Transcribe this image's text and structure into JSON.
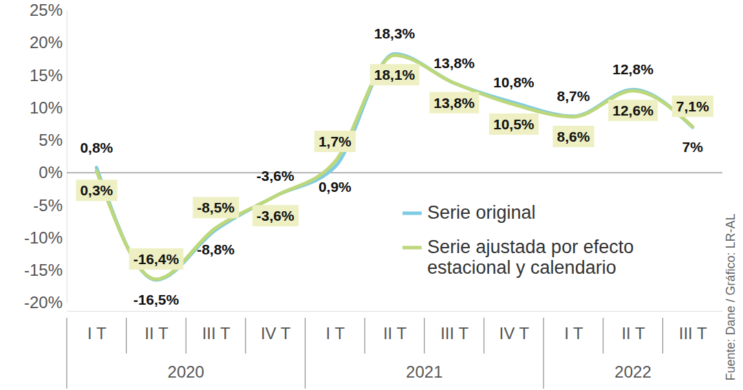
{
  "chart_data": {
    "type": "line",
    "categories": [
      "I T",
      "II T",
      "III T",
      "IV T",
      "I T",
      "II T",
      "III T",
      "IV T",
      "I T",
      "II T",
      "III T"
    ],
    "groups": [
      "2020",
      "2020",
      "2020",
      "2020",
      "2021",
      "2021",
      "2021",
      "2021",
      "2022",
      "2022",
      "2022"
    ],
    "series": [
      {
        "name": "Serie original",
        "color": "#7fcbe3",
        "values": [
          0.8,
          -16.5,
          -8.8,
          -3.6,
          0.9,
          18.3,
          13.8,
          10.8,
          8.7,
          12.8,
          7
        ],
        "value_labels": [
          "0,8%",
          "-16,5%",
          "-8,8%",
          "-3,6%",
          "0,9%",
          "18,3%",
          "13,8%",
          "10,8%",
          "8,7%",
          "12,8%",
          "7%"
        ]
      },
      {
        "name": "Serie ajustada por efecto estacional y calendario",
        "color": "#bdd77b",
        "values": [
          0.3,
          -16.4,
          -8.5,
          -3.6,
          1.7,
          18.1,
          13.8,
          10.5,
          8.6,
          12.6,
          7.1
        ],
        "value_labels": [
          "0,3%",
          "-16,4%",
          "-8,5%",
          "-3,6%",
          "1,7%",
          "18,1%",
          "13,8%",
          "10,5%",
          "8,6%",
          "12,6%",
          "7,1%"
        ]
      }
    ],
    "ylim": [
      -20,
      25
    ],
    "yticks": [
      {
        "value": -20,
        "label": "-20%"
      },
      {
        "value": -15,
        "label": "-15%"
      },
      {
        "value": -10,
        "label": "-10%"
      },
      {
        "value": -5,
        "label": "-5%"
      },
      {
        "value": 0,
        "label": "0%"
      },
      {
        "value": 5,
        "label": "5%"
      },
      {
        "value": 10,
        "label": "10%"
      },
      {
        "value": 15,
        "label": "15%"
      },
      {
        "value": 20,
        "label": "20%"
      },
      {
        "value": 25,
        "label": "25%"
      }
    ],
    "data_labels": true,
    "legend": "right",
    "source": "Fuente: Dane / Gráfico: LR-AL"
  }
}
